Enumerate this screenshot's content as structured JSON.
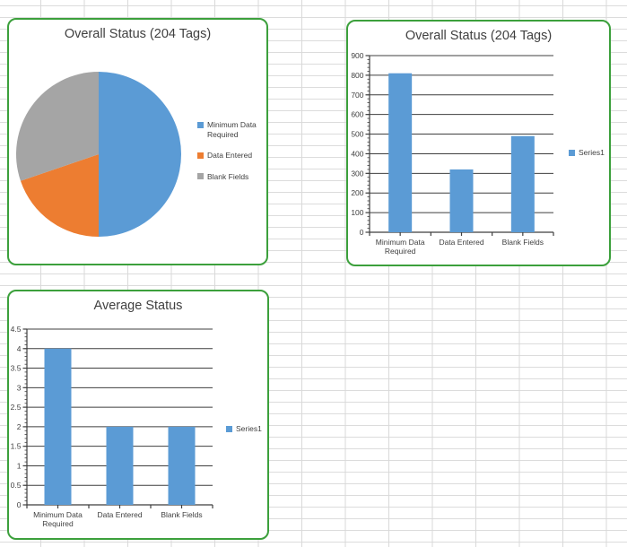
{
  "app": {
    "surface": "spreadsheet-with-embedded-charts"
  },
  "colors": {
    "series_blue": "#5B9BD5",
    "pie_orange": "#ED7D31",
    "pie_gray": "#A5A5A5",
    "card_border_green": "#3CA03C",
    "sheet_grid_line": "#D9D9D9",
    "axis_line": "#3F3F3F",
    "text": "#404040"
  },
  "chart_data": [
    {
      "id": "overall-pie",
      "type": "pie",
      "title": "Overall Status (204 Tags)",
      "categories": [
        "Minimum Data Required",
        "Data Entered",
        "Blank Fields"
      ],
      "values": [
        810,
        320,
        490
      ],
      "colors": [
        "#5B9BD5",
        "#ED7D31",
        "#A5A5A5"
      ],
      "legend_position": "right",
      "start_angle": "top",
      "direction": "clockwise"
    },
    {
      "id": "overall-bar",
      "type": "bar",
      "title": "Overall Status (204 Tags)",
      "categories": [
        "Minimum Data Required",
        "Data Entered",
        "Blank Fields"
      ],
      "series": [
        {
          "name": "Series1",
          "values": [
            810,
            320,
            490
          ],
          "color": "#5B9BD5"
        }
      ],
      "ylim": [
        0,
        900
      ],
      "ytick_step": 100,
      "yminor_step": 20,
      "grid": true,
      "legend_position": "right"
    },
    {
      "id": "average-bar",
      "type": "bar",
      "title": "Average Status",
      "categories": [
        "Minimum Data Required",
        "Data Entered",
        "Blank Fields"
      ],
      "series": [
        {
          "name": "Series1",
          "values": [
            4,
            2,
            2
          ],
          "color": "#5B9BD5"
        }
      ],
      "ylim": [
        0,
        4.5
      ],
      "ytick_step": 0.5,
      "yminor_step": 0.1,
      "grid": true,
      "legend_position": "right"
    }
  ]
}
